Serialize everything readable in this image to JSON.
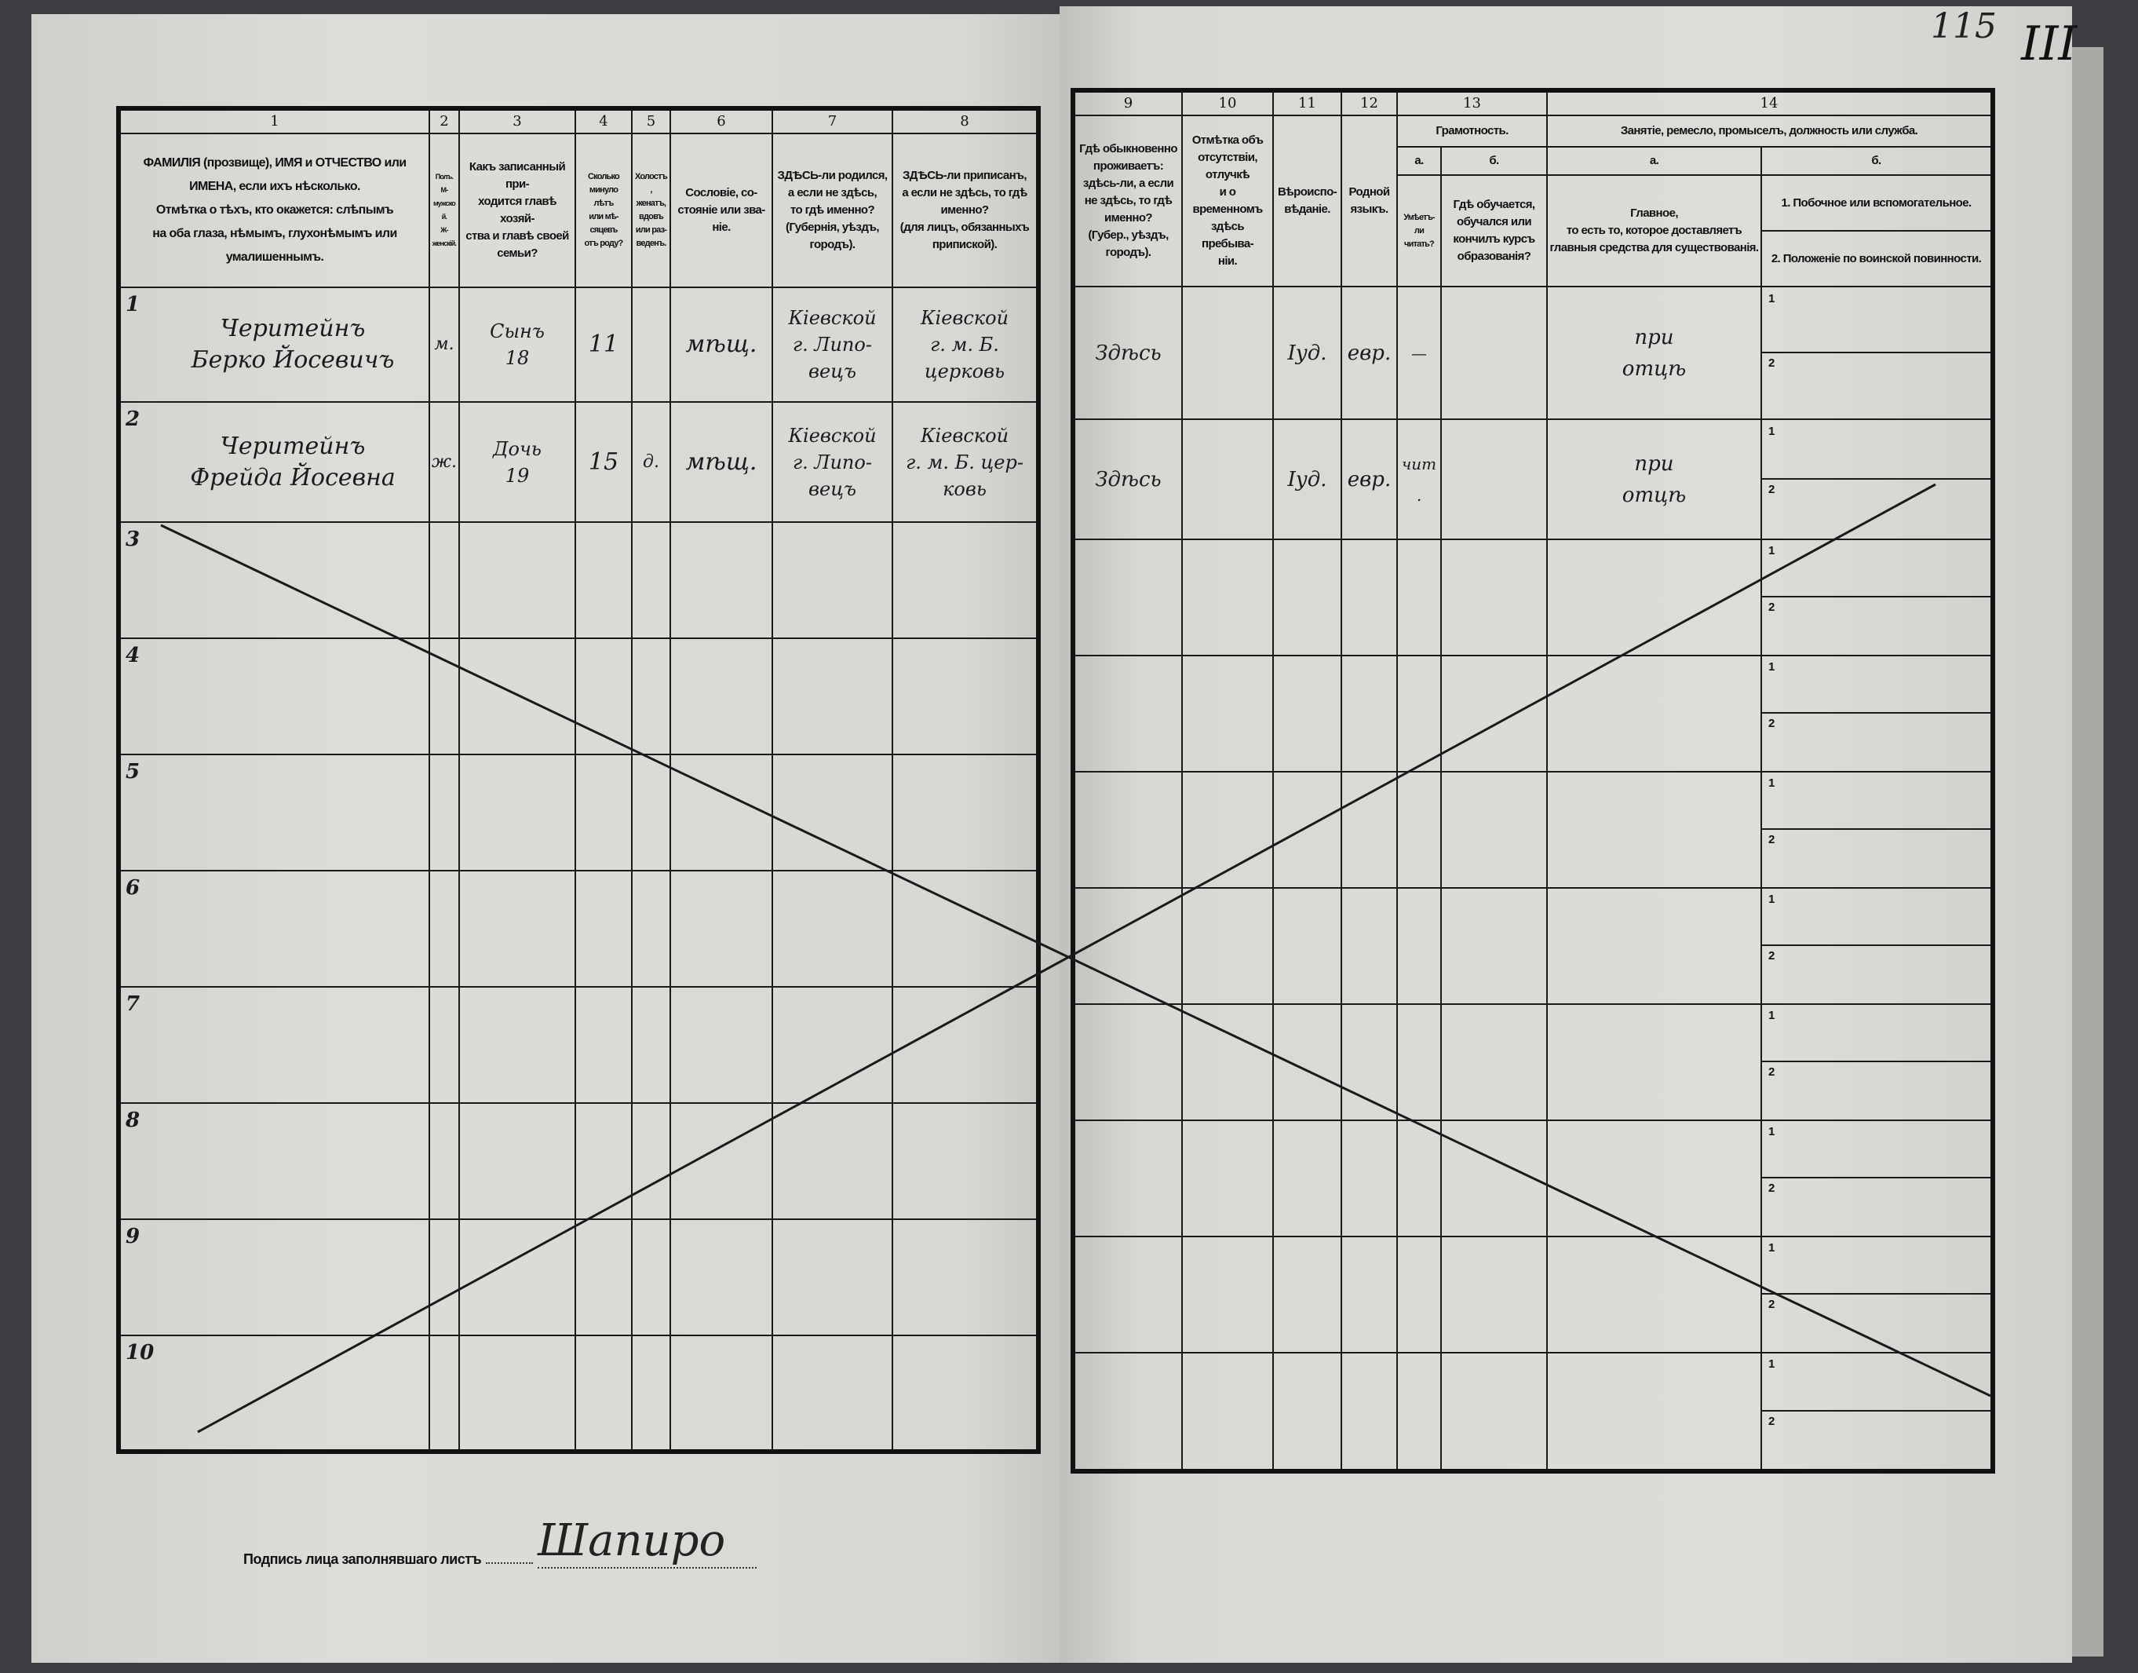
{
  "page_marks": {
    "page_number": "115",
    "sheet_mark": "III"
  },
  "left_header": [
    {
      "num": "1",
      "text": "ФАМИЛІЯ (прозвище), ИМЯ и ОТЧЕСТВО или\nИМЕНА, если ихъ нѣсколько.\nОтмѣтка о тѣхъ, кто окажется: слѣпымъ\nна оба глаза, нѣмымъ, глухонѣмымъ или\nумалишеннымъ."
    },
    {
      "num": "2",
      "text": "Полъ.\nМ-мужской.\nЖ-женскій."
    },
    {
      "num": "3",
      "text": "Какъ записанный при-\nходится главѣ хозяй-\nства и главѣ своей\nсемьи?"
    },
    {
      "num": "4",
      "text": "Сколько\nминуло\nлѣтъ\nили мѣ-\nсяцевъ\nотъ роду?"
    },
    {
      "num": "5",
      "text": "Холостъ,\nженатъ,\nвдовъ\nили раз-\nведенъ."
    },
    {
      "num": "6",
      "text": "Сословіе, со-\nстояніе или зва-\nніе."
    },
    {
      "num": "7",
      "text": "ЗДѢСЬ-ли родился,\nа если не здѣсь,\nто гдѣ именно?\n(Губернія, уѣздъ, городъ)."
    },
    {
      "num": "8",
      "text": "ЗДѢСЬ-ли приписанъ,\nа если не здѣсь, то гдѣ\nименно?\n(для лицъ, обязанныхъ\nприпиской)."
    }
  ],
  "right_header": {
    "col9": {
      "num": "9",
      "text": "Гдѣ обыкновенно\nпроживаетъ:\nздѣсь-ли, а если\nне здѣсь, то гдѣ\nименно?\n(Губер., уѣздъ, городъ)."
    },
    "col10": {
      "num": "10",
      "text": "Отмѣтка объ\nотсутствіи, отлучкѣ\nи о временномъ\nздѣсь пребыва-\nніи."
    },
    "col11": {
      "num": "11",
      "text": "Вѣроиспо-\nвѣданіе."
    },
    "col12": {
      "num": "12",
      "text": "Родной\nязыкъ."
    },
    "col13": {
      "num": "13",
      "title": "Грамотность.",
      "a_label": "а.",
      "b_label": "б.",
      "a_text": "Умѣетъ-\nли\nчитать?",
      "b_text": "Гдѣ обучается,\nобучался или\nкончилъ курсъ\nобразованія?"
    },
    "col14": {
      "num": "14",
      "title": "Занятіе, ремесло, промыселъ, должность или служба.",
      "a_label": "а.",
      "b_label": "б.",
      "a_text": "Главное,\nто есть то, которое доставляетъ\nглавныя средства для существованія.",
      "b1_text": "1. Побочное или вспомогательное.",
      "b2_text": "2. Положеніе по воинской повинности."
    }
  },
  "subrow_labels": [
    "1",
    "2"
  ],
  "rows": [
    {
      "n": "1",
      "name": "Черитейнъ\nБерко Йосевичъ",
      "sex": "м.",
      "relation": "Сынъ\n18",
      "age": "11",
      "marital": "",
      "estate": "мѣщ.",
      "birthplace": "Кiевской\nг. Липо-\nвецъ",
      "registered": "Кiевской\nг. м. Б.\nцерковь",
      "residence": "Здѣсь",
      "absence": "",
      "religion": "Iуд.",
      "language": "евр.",
      "literacy_a": "—",
      "literacy_b": "",
      "occupation_a": "при\nотцѣ",
      "occupation_b1": "",
      "occupation_b2": ""
    },
    {
      "n": "2",
      "name": "Черитейнъ\nФрейда Йосевна",
      "sex": "ж.",
      "relation": "Дочь\n19",
      "age": "15",
      "marital": "д.",
      "estate": "мѣщ.",
      "birthplace": "Кiевской\nг. Липо-\nвецъ",
      "registered": "Кiевской\nг. м. Б. цер-\nковь",
      "residence": "Здѣсь",
      "absence": "",
      "religion": "Iуд.",
      "language": "евр.",
      "literacy_a": "чит.",
      "literacy_b": "",
      "occupation_a": "при\nотцѣ",
      "occupation_b1": "",
      "occupation_b2": ""
    },
    {
      "n": "3"
    },
    {
      "n": "4"
    },
    {
      "n": "5"
    },
    {
      "n": "6"
    },
    {
      "n": "7"
    },
    {
      "n": "8"
    },
    {
      "n": "9"
    },
    {
      "n": "10"
    }
  ],
  "footer": {
    "signature_label": "Подпись лица заполнявшаго листъ",
    "signature": "Шапиро"
  }
}
